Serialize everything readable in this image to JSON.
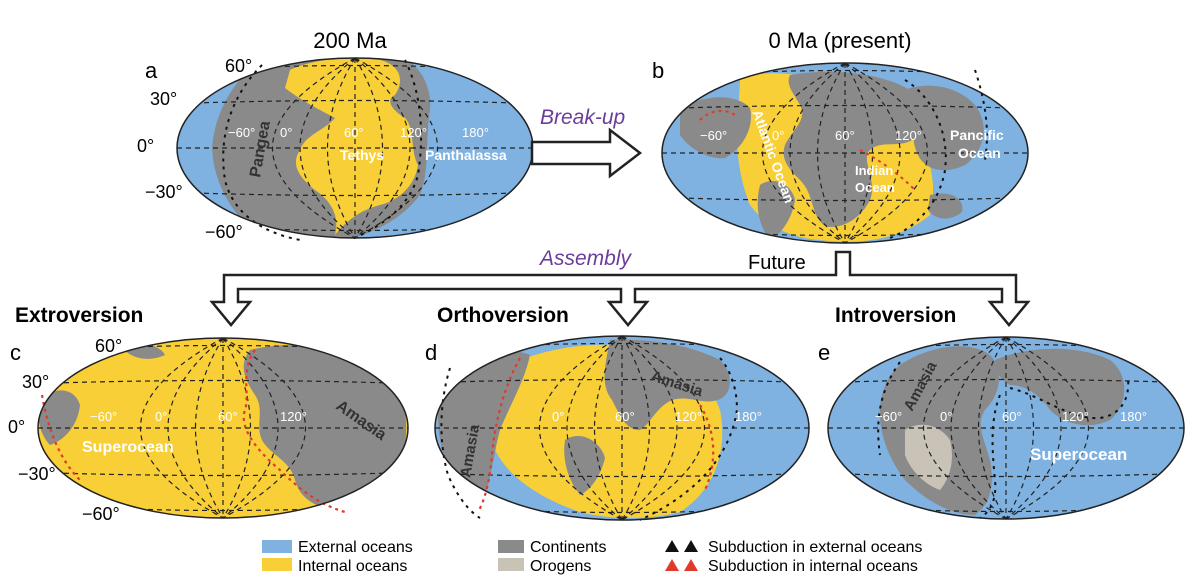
{
  "panels": {
    "a": {
      "letter": "a",
      "title": "200 Ma",
      "lat": [
        "60°",
        "30°",
        "0°",
        "−30°",
        "−60°"
      ],
      "lon": [
        "−60°",
        "0°",
        "60°",
        "120°",
        "180°"
      ],
      "labels": {
        "pangea": "Pangea",
        "tethys": "Tethys",
        "panthalassa": "Panthalassa"
      }
    },
    "b": {
      "letter": "b",
      "title": "0 Ma (present)",
      "lon": [
        "−60°",
        "0°",
        "60°",
        "120°"
      ],
      "labels": {
        "atlantic": "Atlantic Ocean",
        "indian1": "Indian",
        "indian2": "Ocean",
        "pacific1": "Pancific",
        "pacific2": "Ocean"
      }
    },
    "c": {
      "letter": "c",
      "heading": "Extroversion",
      "lat": [
        "60°",
        "30°",
        "0°",
        "−30°",
        "−60°"
      ],
      "lon": [
        "−60°",
        "0°",
        "60°",
        "120°"
      ],
      "labels": {
        "superocean": "Superocean",
        "amasia": "Amasia"
      }
    },
    "d": {
      "letter": "d",
      "heading": "Orthoversion",
      "lon": [
        "0°",
        "60°",
        "120°",
        "180°"
      ],
      "labels": {
        "amasia1": "Amasia",
        "amasia2": "Amasia"
      }
    },
    "e": {
      "letter": "e",
      "heading": "Introversion",
      "lon": [
        "−60°",
        "0°",
        "60°",
        "120°",
        "180°"
      ],
      "labels": {
        "amasia": "Amasia",
        "superocean": "Superocean"
      }
    }
  },
  "arrows": {
    "breakup": "Break-up",
    "assembly": "Assembly",
    "future": "Future"
  },
  "legend": {
    "external": "External oceans",
    "internal": "Internal oceans",
    "continents": "Continents",
    "orogens": "Orogens",
    "sub_ext": "Subduction in external oceans",
    "sub_int": "Subduction in internal oceans"
  },
  "colors": {
    "external": "#7fb2e0",
    "internal": "#f8cf36",
    "continent": "#8a8a8a",
    "orogen": "#c8c3b6",
    "sub_external": "#111111",
    "sub_internal": "#e03a2a",
    "label_purple": "#6a3d9a"
  }
}
